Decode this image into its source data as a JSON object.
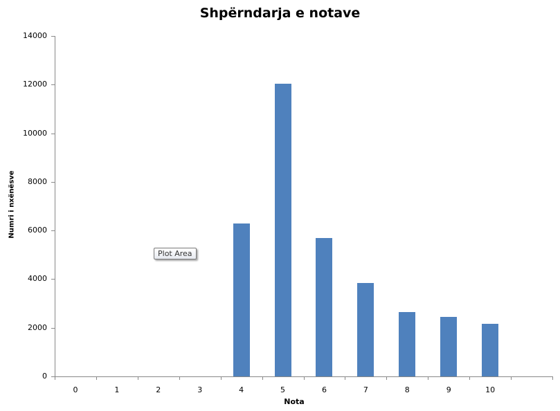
{
  "chart_data": {
    "type": "bar",
    "title": "Shpërndarja e notave",
    "xlabel": "Nota",
    "ylabel": "Numri i nxënësve",
    "categories": [
      "0",
      "1",
      "2",
      "3",
      "4",
      "5",
      "6",
      "7",
      "8",
      "9",
      "10",
      ""
    ],
    "values": [
      0,
      0,
      0,
      0,
      6280,
      12050,
      5680,
      3830,
      2660,
      2440,
      2170,
      0
    ],
    "ylim": [
      0,
      14000
    ],
    "yticks": [
      "0",
      "2000",
      "4000",
      "6000",
      "8000",
      "10000",
      "12000",
      "14000"
    ],
    "grid": false,
    "legend": null,
    "bar_color": "#4F81BD"
  },
  "tooltip": {
    "text": "Plot Area"
  }
}
